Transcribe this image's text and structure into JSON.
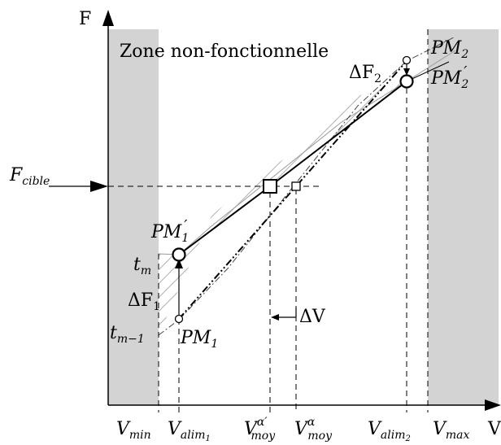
{
  "axes": {
    "y_label": "F",
    "x_label": "V"
  },
  "zone_label": "Zone non-fonctionnelle",
  "target": {
    "label_main": "F",
    "label_sub": "cible"
  },
  "points": {
    "pm1_prime": {
      "main": "PM",
      "sub": "1",
      "prime": "′"
    },
    "pm1": {
      "main": "PM",
      "sub": "1"
    },
    "pm2": {
      "main": "PM",
      "sub": "2"
    },
    "pm2_prime": {
      "main": "PM",
      "sub": "2",
      "prime": "′"
    }
  },
  "deltas": {
    "df1": {
      "main": "ΔF",
      "sub": "1"
    },
    "df2": {
      "main": "ΔF",
      "sub": "2"
    },
    "dv": "ΔV"
  },
  "time_labels": {
    "tm": {
      "main": "t",
      "sub": "m"
    },
    "tm1": {
      "main": "t",
      "sub": "m−1"
    }
  },
  "x_ticks": {
    "vmin": {
      "main": "V",
      "sub": "min"
    },
    "valim1": {
      "main": "V",
      "sub": "alim",
      "subsub": "1"
    },
    "vmoy_alpha_prime": {
      "main": "V",
      "sub": "moy",
      "sup": "α′"
    },
    "vmoy_alpha": {
      "main": "V",
      "sub": "moy",
      "sup": "α"
    },
    "valim2": {
      "main": "V",
      "sub": "alim",
      "subsub": "2"
    },
    "vmax": {
      "main": "V",
      "sub": "max"
    }
  },
  "colors": {
    "zone_fill": "#d3d3d3",
    "line": "#000000",
    "hatch": "#b0b0b0"
  }
}
